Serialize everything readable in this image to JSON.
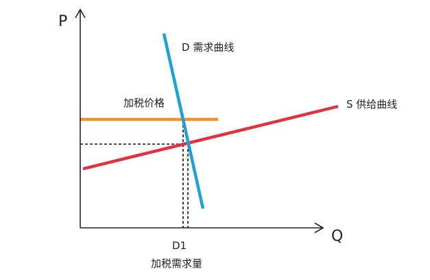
{
  "axes": {
    "y_label": "P",
    "x_label": "Q"
  },
  "curves": {
    "demand": {
      "label": "D 需求曲线",
      "color": "#1EA2D6"
    },
    "supply": {
      "label": "S 供给曲线",
      "color": "#E23140"
    },
    "tax_price": {
      "label": "加税价格",
      "color": "#F0922B"
    }
  },
  "quantity_marker": {
    "label": "D1",
    "caption": "加税需求量"
  }
}
